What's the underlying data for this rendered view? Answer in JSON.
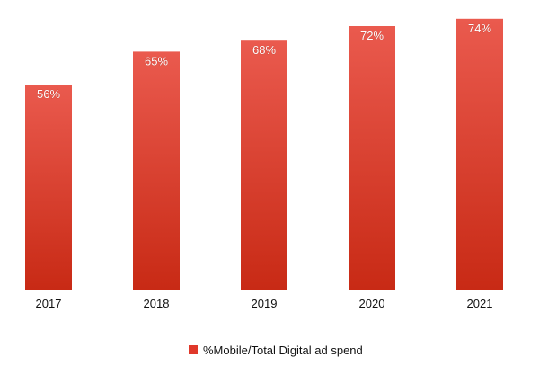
{
  "chart_data": {
    "type": "bar",
    "title": "",
    "xlabel": "",
    "ylabel": "",
    "categories": [
      "2017",
      "2018",
      "2019",
      "2020",
      "2021"
    ],
    "series": [
      {
        "name": "%Mobile/Total Digital ad spend",
        "values": [
          56,
          65,
          68,
          72,
          74
        ],
        "value_labels": [
          "56%",
          "65%",
          "68%",
          "72%",
          "74%"
        ],
        "color": "#e0382a"
      }
    ],
    "ylim": [
      0,
      80
    ],
    "grid": false,
    "legend": "bottom"
  }
}
